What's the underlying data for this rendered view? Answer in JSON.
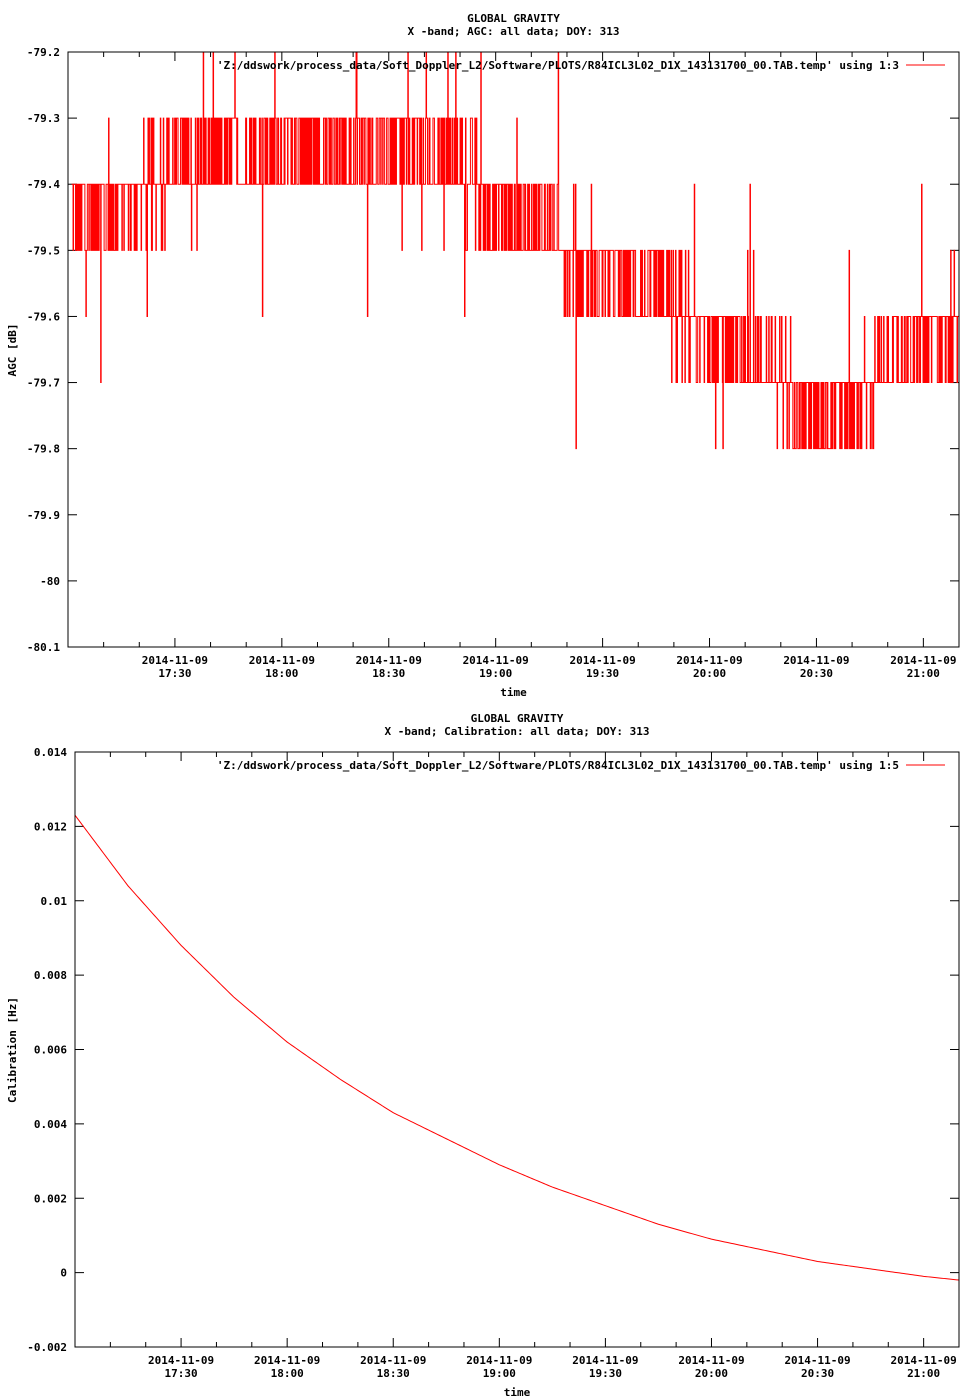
{
  "chart_data": [
    {
      "type": "line",
      "title": "GLOBAL GRAVITY",
      "subtitle": "X -band; AGC: all data; DOY: 313",
      "xlabel": "time",
      "ylabel": "AGC [dB]",
      "ylim": [
        -80.1,
        -79.2
      ],
      "xlim": [
        "2014-11-09 17:00",
        "2014-11-09 21:10"
      ],
      "grid": false,
      "legend_position": "top-right",
      "series_color": "#ff0000",
      "legend": "'Z:/ddswork/process_data/Soft_Doppler_L2/Software/PLOTS/R84ICL3L02_D1X_143131700_00.TAB.temp' using 1:3",
      "yticks": [
        "-79.2",
        "-79.3",
        "-79.4",
        "-79.5",
        "-79.6",
        "-79.7",
        "-79.8",
        "-79.9",
        "-80",
        "-80.1"
      ],
      "xtick_dates": [
        "2014-11-09",
        "2014-11-09",
        "2014-11-09",
        "2014-11-09",
        "2014-11-09",
        "2014-11-09",
        "2014-11-09",
        "2014-11-09"
      ],
      "xtick_times": [
        "17:30",
        "18:00",
        "18:30",
        "19:00",
        "19:30",
        "20:00",
        "20:30",
        "21:00"
      ],
      "series": [
        {
          "x": [
            "2014-11-09 17:01",
            "2014-11-09 17:15",
            "2014-11-09 17:30",
            "2014-11-09 17:45",
            "2014-11-09 18:00",
            "2014-11-09 18:15",
            "2014-11-09 18:30",
            "2014-11-09 18:45",
            "2014-11-09 19:00",
            "2014-11-09 19:15",
            "2014-11-09 19:30",
            "2014-11-09 19:45",
            "2014-11-09 20:00",
            "2014-11-09 20:15",
            "2014-11-09 20:30",
            "2014-11-09 20:45",
            "2014-11-09 21:00",
            "2014-11-09 21:10"
          ],
          "values": [
            -79.45,
            -79.42,
            -79.38,
            -79.37,
            -79.35,
            -79.36,
            -79.35,
            -79.36,
            -79.44,
            -79.48,
            -79.52,
            -79.58,
            -79.63,
            -79.68,
            -79.74,
            -79.71,
            -79.63,
            -79.6
          ]
        }
      ]
    },
    {
      "type": "line",
      "title": "GLOBAL GRAVITY",
      "subtitle": "X -band; Calibration: all data; DOY: 313",
      "xlabel": "time",
      "ylabel": "Calibration [Hz]",
      "ylim": [
        -0.002,
        0.014
      ],
      "xlim": [
        "2014-11-09 17:00",
        "2014-11-09 21:10"
      ],
      "grid": false,
      "legend_position": "top-right",
      "series_color": "#ff0000",
      "legend": "'Z:/ddswork/process_data/Soft_Doppler_L2/Software/PLOTS/R84ICL3L02_D1X_143131700_00.TAB.temp' using 1:5",
      "yticks": [
        "0.014",
        "0.012",
        "0.01",
        "0.008",
        "0.006",
        "0.004",
        "0.002",
        "0",
        "-0.002"
      ],
      "xtick_dates": [
        "2014-11-09",
        "2014-11-09",
        "2014-11-09",
        "2014-11-09",
        "2014-11-09",
        "2014-11-09",
        "2014-11-09",
        "2014-11-09"
      ],
      "xtick_times": [
        "17:30",
        "18:00",
        "18:30",
        "19:00",
        "19:30",
        "20:00",
        "20:30",
        "21:00"
      ],
      "series": [
        {
          "x": [
            "2014-11-09 17:00",
            "2014-11-09 17:15",
            "2014-11-09 17:30",
            "2014-11-09 17:45",
            "2014-11-09 18:00",
            "2014-11-09 18:15",
            "2014-11-09 18:30",
            "2014-11-09 18:45",
            "2014-11-09 19:00",
            "2014-11-09 19:15",
            "2014-11-09 19:30",
            "2014-11-09 19:45",
            "2014-11-09 20:00",
            "2014-11-09 20:15",
            "2014-11-09 20:30",
            "2014-11-09 20:45",
            "2014-11-09 21:00",
            "2014-11-09 21:10"
          ],
          "values": [
            0.0123,
            0.0104,
            0.0088,
            0.0074,
            0.0062,
            0.0052,
            0.0043,
            0.0036,
            0.0029,
            0.0023,
            0.0018,
            0.0013,
            0.0009,
            0.0006,
            0.0003,
            0.0001,
            -0.0001,
            -0.0002
          ]
        }
      ]
    }
  ]
}
